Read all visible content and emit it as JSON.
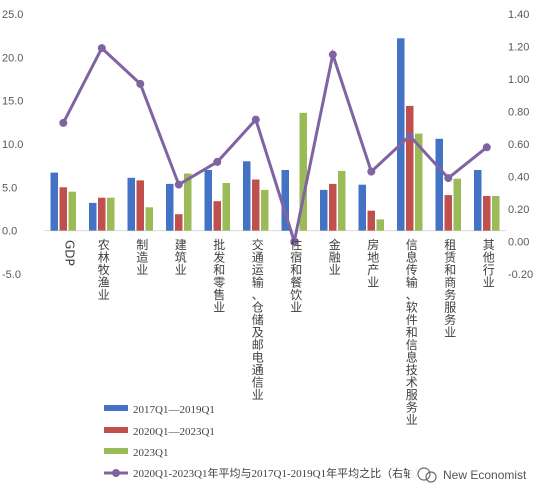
{
  "chart_data": {
    "type": "bar",
    "categories": [
      "GDP",
      "农林牧渔业",
      "制造业",
      "建筑业",
      "批发和零售业",
      "交通运输、仓储及邮电通信业",
      "住宿和餐饮业",
      "金融业",
      "房地产业",
      "信息传输、软件和信息技术服务业",
      "租赁和商务服务业",
      "其他行业"
    ],
    "series": [
      {
        "name": "2017Q1—2019Q1",
        "type": "bar",
        "axis": "left",
        "color": "#4472C4",
        "values": [
          6.7,
          3.2,
          6.1,
          5.4,
          7.0,
          8.0,
          7.0,
          4.7,
          5.3,
          22.2,
          10.6,
          7.0
        ]
      },
      {
        "name": "2020Q1—2023Q1",
        "type": "bar",
        "axis": "left",
        "color": "#C0504D",
        "values": [
          5.0,
          3.8,
          5.8,
          1.9,
          3.4,
          5.9,
          0.0,
          5.4,
          2.3,
          14.4,
          4.1,
          4.0
        ]
      },
      {
        "name": "2023Q1",
        "type": "bar",
        "axis": "left",
        "color": "#9BBB59",
        "values": [
          4.5,
          3.8,
          2.7,
          6.6,
          5.5,
          4.7,
          13.6,
          6.9,
          1.3,
          11.2,
          6.0,
          4.0
        ]
      },
      {
        "name": "2020Q1-2023Q1年平均与2017Q1-2019Q1年平均之比（右轴）",
        "type": "line",
        "axis": "right",
        "color": "#8064A2",
        "values": [
          0.73,
          1.19,
          0.97,
          0.35,
          0.49,
          0.75,
          0.0,
          1.15,
          0.43,
          0.65,
          0.39,
          0.58
        ]
      }
    ],
    "ylim": [
      -5,
      25
    ],
    "yticks": [
      "-5.0",
      "0.0",
      "5.0",
      "10.0",
      "15.0",
      "20.0",
      "25.0"
    ],
    "y2lim": [
      -0.2,
      1.4
    ],
    "y2ticks": [
      "-0.20",
      "0.00",
      "0.20",
      "0.40",
      "0.60",
      "0.80",
      "1.00",
      "1.20",
      "1.40"
    ],
    "legend_position": "bottom-left",
    "grid": false
  },
  "watermark": {
    "text": "New Economist"
  }
}
